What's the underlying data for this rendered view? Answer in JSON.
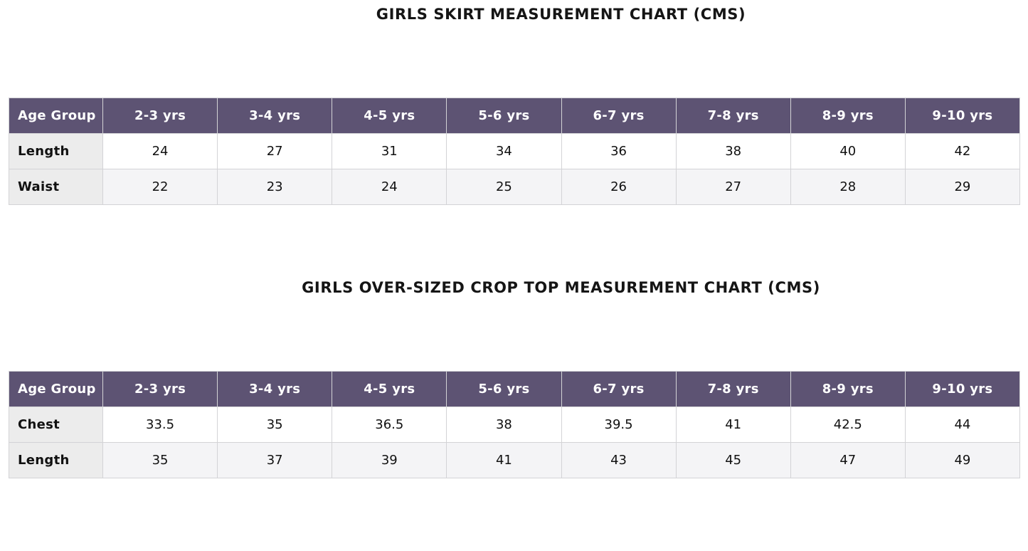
{
  "charts": [
    {
      "title": "GIRLS SKIRT MEASUREMENT CHART (CMS)",
      "header_label": "Age Group",
      "headers": [
        "2-3 yrs",
        "3-4 yrs",
        "4-5 yrs",
        "5-6 yrs",
        "6-7 yrs",
        "7-8 yrs",
        "8-9 yrs",
        "9-10 yrs"
      ],
      "rows": [
        {
          "label": "Length",
          "values": [
            "24",
            "27",
            "31",
            "34",
            "36",
            "38",
            "40",
            "42"
          ]
        },
        {
          "label": "Waist",
          "values": [
            "22",
            "23",
            "24",
            "25",
            "26",
            "27",
            "28",
            "29"
          ]
        }
      ]
    },
    {
      "title": "GIRLS OVER-SIZED CROP TOP MEASUREMENT CHART (CMS)",
      "header_label": "Age Group",
      "headers": [
        "2-3 yrs",
        "3-4 yrs",
        "4-5 yrs",
        "5-6 yrs",
        "6-7 yrs",
        "7-8 yrs",
        "8-9 yrs",
        "9-10 yrs"
      ],
      "rows": [
        {
          "label": "Chest",
          "values": [
            "33.5",
            "35",
            "36.5",
            "38",
            "39.5",
            "41",
            "42.5",
            "44"
          ]
        },
        {
          "label": "Length",
          "values": [
            "35",
            "37",
            "39",
            "41",
            "43",
            "45",
            "47",
            "49"
          ]
        }
      ]
    }
  ],
  "colors": {
    "header_background": "#5d5373",
    "header_text": "#ffffff",
    "label_column_background": "#ececec",
    "alternate_row_background": "#f4f4f6",
    "border": "#d3d3d6"
  }
}
